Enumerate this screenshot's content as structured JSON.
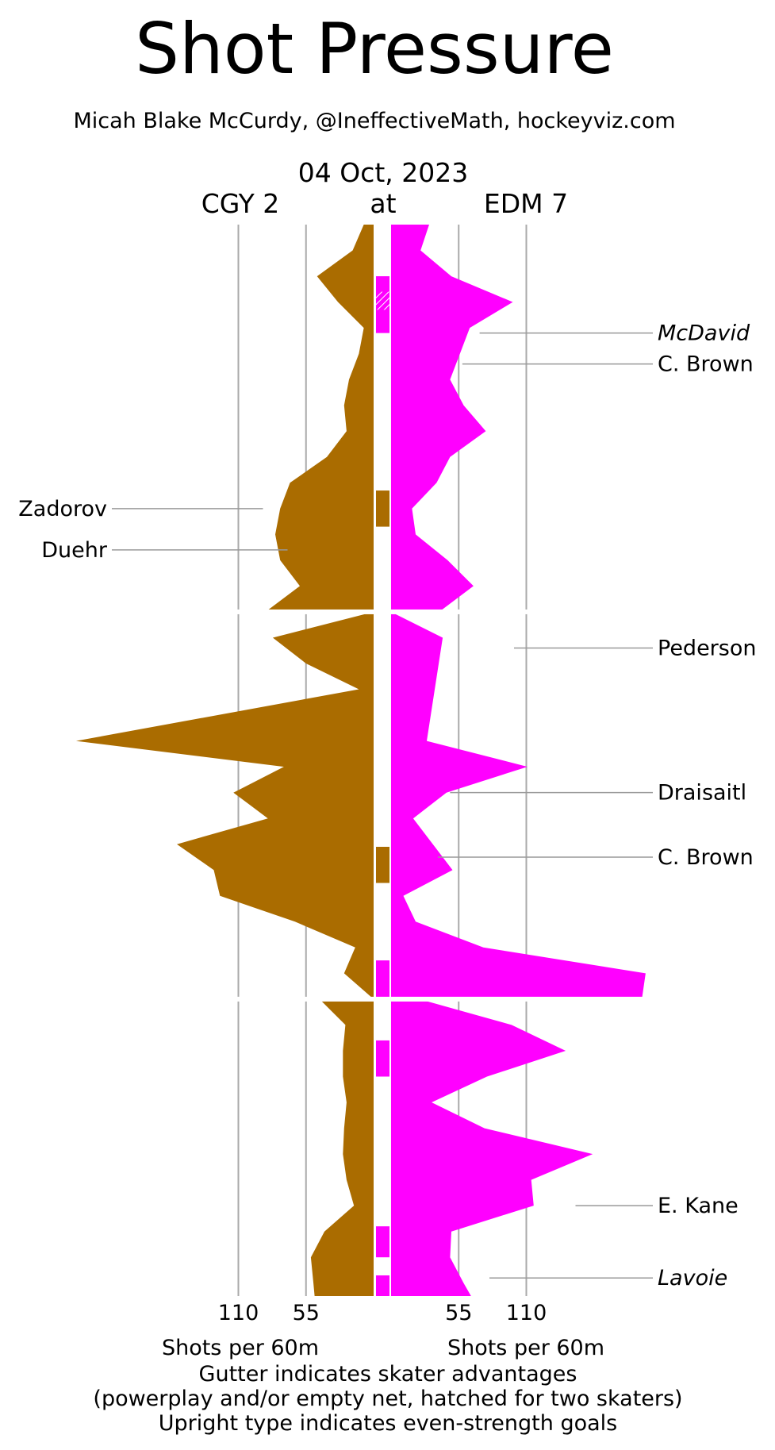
{
  "chart_data": {
    "type": "area",
    "title": "Shot Pressure",
    "subtitle": "Micah Blake McCurdy, @IneffectiveMath, hockeyviz.com",
    "date": "04 Oct, 2023",
    "separator": "at",
    "teams": {
      "away": {
        "label": "CGY 2",
        "color": "#aa6c00"
      },
      "home": {
        "label": "EDM 7",
        "color": "#ff00ff"
      }
    },
    "x_axis": {
      "label": "Shots per 60m",
      "ticks": [
        {
          "value": 110,
          "label": "110"
        },
        {
          "value": 55,
          "label": "55"
        }
      ],
      "grid": true
    },
    "periods": [
      1,
      2,
      3
    ],
    "y_unit": "game minutes (0 top, 60 bottom)",
    "away_series": {
      "name": "CGY",
      "points": [
        [
          0,
          8
        ],
        [
          1,
          17
        ],
        [
          2,
          46
        ],
        [
          3,
          29
        ],
        [
          4,
          8
        ],
        [
          5,
          12
        ],
        [
          6,
          20
        ],
        [
          7,
          24
        ],
        [
          8,
          22
        ],
        [
          9,
          38
        ],
        [
          10,
          68
        ],
        [
          11,
          76
        ],
        [
          12,
          80
        ],
        [
          13,
          76
        ],
        [
          14,
          60
        ],
        [
          15,
          88
        ],
        [
          16,
          82
        ],
        [
          17,
          55
        ],
        [
          18,
          12
        ],
        [
          20,
          242
        ],
        [
          21,
          73
        ],
        [
          22,
          114
        ],
        [
          23,
          86
        ],
        [
          24,
          160
        ],
        [
          25,
          130
        ],
        [
          26,
          125
        ],
        [
          27,
          64
        ],
        [
          28,
          15
        ],
        [
          29,
          24
        ],
        [
          30,
          0
        ],
        [
          30,
          44
        ],
        [
          31,
          23
        ],
        [
          32,
          25
        ],
        [
          33,
          25
        ],
        [
          34,
          22
        ],
        [
          35,
          24
        ],
        [
          36,
          25
        ],
        [
          37,
          22
        ],
        [
          38,
          16
        ],
        [
          39,
          40
        ],
        [
          40,
          51
        ],
        [
          41,
          49
        ],
        [
          41.5,
          48
        ]
      ]
    },
    "home_series": {
      "name": "EDM",
      "points": [
        [
          0,
          31
        ],
        [
          1,
          24
        ],
        [
          2,
          49
        ],
        [
          3,
          99
        ],
        [
          4,
          64
        ],
        [
          5,
          56
        ],
        [
          6,
          48
        ],
        [
          7,
          59
        ],
        [
          8,
          77
        ],
        [
          9,
          48
        ],
        [
          10,
          37
        ],
        [
          11,
          17
        ],
        [
          12,
          20
        ],
        [
          13,
          46
        ],
        [
          14,
          67
        ],
        [
          15,
          39
        ],
        [
          16,
          42
        ],
        [
          20,
          29
        ],
        [
          21,
          111
        ],
        [
          22,
          45
        ],
        [
          23,
          18
        ],
        [
          24,
          34
        ],
        [
          25,
          50
        ],
        [
          26,
          10
        ],
        [
          27,
          20
        ],
        [
          28,
          75
        ],
        [
          29,
          207
        ],
        [
          30,
          204
        ],
        [
          30,
          23
        ],
        [
          31,
          98
        ],
        [
          32,
          142
        ],
        [
          33,
          78
        ],
        [
          34,
          33
        ],
        [
          35,
          76
        ],
        [
          36,
          164
        ],
        [
          37,
          114
        ],
        [
          38,
          116
        ],
        [
          39,
          49
        ],
        [
          40,
          48
        ],
        [
          41,
          59
        ],
        [
          41.5,
          65
        ]
      ]
    },
    "gutter_bands": [
      {
        "team": "home",
        "start": 2.0,
        "end": 4.2,
        "hatched_from": 2.6,
        "hatched_to": 3.3
      },
      {
        "team": "away",
        "start": 10.3,
        "end": 11.7
      },
      {
        "team": "away",
        "start": 24.1,
        "end": 25.5
      },
      {
        "team": "home",
        "start": 28.5,
        "end": 30.0
      },
      {
        "team": "home",
        "start": 31.6,
        "end": 33.0
      },
      {
        "team": "home",
        "start": 38.8,
        "end": 40.0
      },
      {
        "team": "home",
        "start": 40.7,
        "end": 41.5
      }
    ],
    "goals": [
      {
        "team": "home",
        "name": "McDavid",
        "italic": true,
        "period": 1,
        "t": 4.2,
        "x": 72
      },
      {
        "team": "home",
        "name": "C. Brown",
        "italic": false,
        "period": 1,
        "t": 5.4,
        "x": 58
      },
      {
        "team": "away",
        "name": "Zadorov",
        "italic": false,
        "period": 1,
        "t": 11.0,
        "x": 90
      },
      {
        "team": "away",
        "name": "Duehr",
        "italic": false,
        "period": 1,
        "t": 12.6,
        "x": 70
      },
      {
        "team": "home",
        "name": "Pederson",
        "italic": false,
        "period": 2,
        "t": 1.4,
        "x": 100
      },
      {
        "team": "home",
        "name": "Draisaitl",
        "italic": false,
        "period": 2,
        "t": 7.0,
        "x": 48
      },
      {
        "team": "home",
        "name": "C. Brown",
        "italic": false,
        "period": 2,
        "t": 9.5,
        "x": 38
      },
      {
        "team": "home",
        "name": "E. Kane",
        "italic": false,
        "period": 3,
        "t": 8.0,
        "x": 150
      },
      {
        "team": "home",
        "name": "Lavoie",
        "italic": true,
        "period": 3,
        "t": 10.8,
        "x": 80
      }
    ],
    "footnotes": [
      "Gutter indicates skater advantages",
      "(powerplay and/or empty net, hatched for two skaters)",
      "Upright type indicates even-strength goals"
    ]
  }
}
